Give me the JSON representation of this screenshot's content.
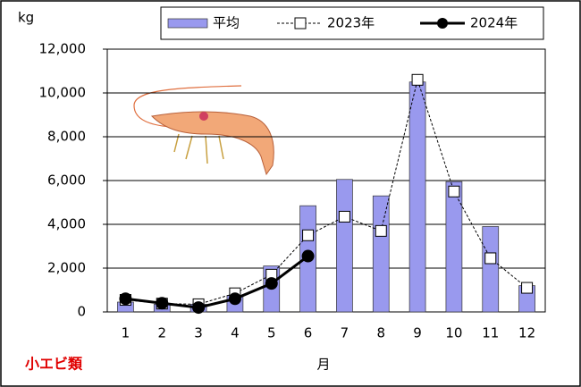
{
  "chart_data": {
    "type": "bar-line",
    "y_label": "kg",
    "x_label": "月",
    "annotation": "小エビ類",
    "categories": [
      "1",
      "2",
      "3",
      "4",
      "5",
      "6",
      "7",
      "8",
      "9",
      "10",
      "11",
      "12"
    ],
    "series": [
      {
        "name": "平均",
        "kind": "bar",
        "color": "#9999ee",
        "values": [
          450,
          350,
          350,
          750,
          2100,
          4850,
          6050,
          5300,
          10500,
          5950,
          3900,
          1200
        ]
      },
      {
        "name": "2023年",
        "kind": "line",
        "style": "dashed",
        "marker": "square",
        "color": "#000000",
        "values": [
          550,
          380,
          350,
          850,
          1700,
          3500,
          4350,
          3700,
          10600,
          5500,
          2450,
          1100
        ]
      },
      {
        "name": "2024年",
        "kind": "line",
        "style": "solid",
        "marker": "circle",
        "color": "#000000",
        "values": [
          600,
          400,
          200,
          600,
          1300,
          2550,
          null,
          null,
          null,
          null,
          null,
          null
        ]
      }
    ],
    "ylim": [
      0,
      12000
    ],
    "yticks": [
      0,
      {
        "value": 2000,
        "label": "2,000"
      },
      {
        "value": 4000,
        "label": "4,000"
      },
      {
        "value": 6000,
        "label": "6,000"
      },
      {
        "value": 8000,
        "label": "8,000"
      },
      {
        "value": 10000,
        "label": "10,000"
      },
      {
        "value": 12000,
        "label": "12,000"
      }
    ],
    "grid": true
  }
}
